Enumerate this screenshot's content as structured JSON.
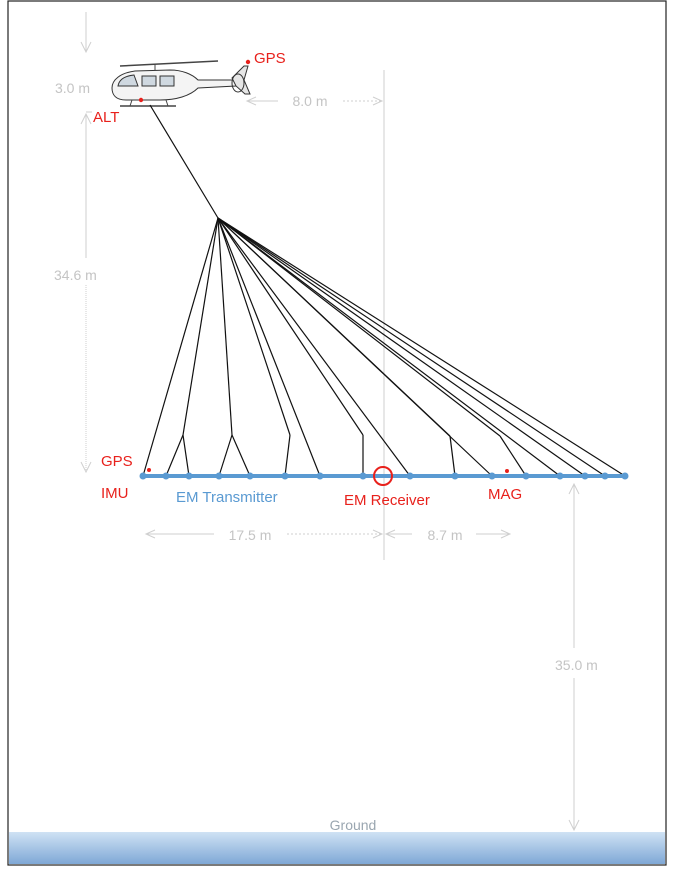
{
  "labels": {
    "gps_top": "GPS",
    "alt": "ALT",
    "gps_bottom": "GPS",
    "imu": "IMU",
    "em_transmitter": "EM Transmitter",
    "em_receiver": "EM Receiver",
    "mag": "MAG",
    "ground": "Ground"
  },
  "dimensions": {
    "antenna_height": "3.0 m",
    "gps_to_receiver": "8.0 m",
    "tow_length": "34.6 m",
    "transmitter_to_receiver": "17.5 m",
    "receiver_to_end": "8.7 m",
    "ground_clearance": "35.0 m"
  },
  "colors": {
    "red": "#e8211c",
    "blue": "#5a9ad2",
    "dim": "#c4c4c4",
    "ground_top": "#c9ddf1",
    "ground_bottom": "#7fa8d6"
  }
}
